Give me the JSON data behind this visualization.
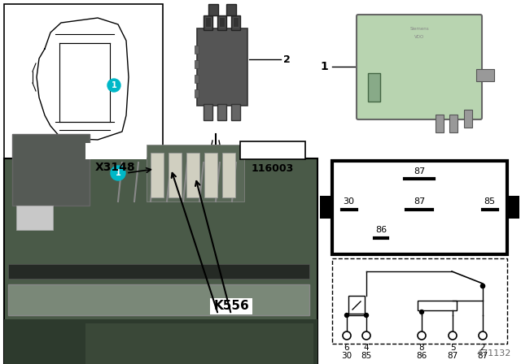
{
  "bg_color": "#ffffff",
  "doc_number": "471132",
  "photo_label": "116003",
  "relay_green_color": "#b8d4b0",
  "k556_label": "K556",
  "x3148_label": "X3148",
  "photo_bg": "#5a6a5a",
  "photo_dark": "#3a4a3a",
  "photo_mid": "#6a7a6a",
  "photo_light": "#8a9a8a"
}
